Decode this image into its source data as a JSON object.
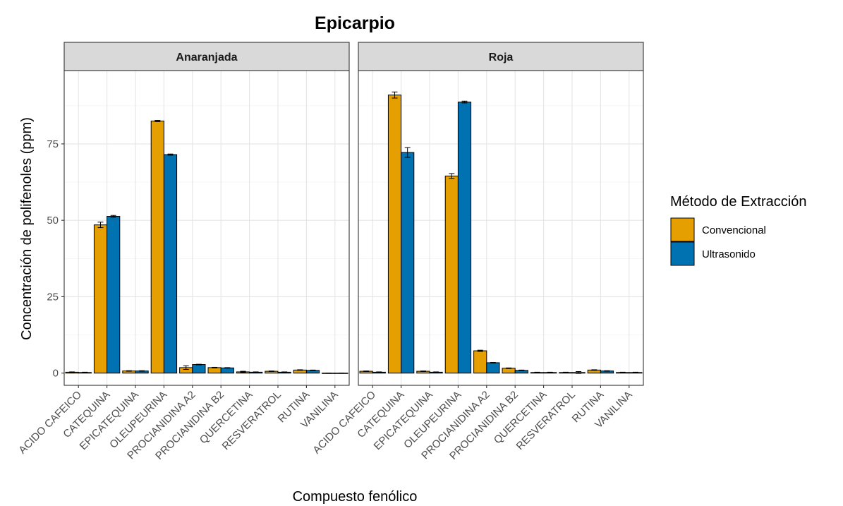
{
  "chart_data": {
    "type": "bar",
    "title": "Epicarpio",
    "xlabel": "Compuesto fenólico",
    "ylabel": "Concentración de polifenoles (ppm)",
    "ylim": [
      -4,
      99
    ],
    "yticks": [
      0,
      25,
      50,
      75
    ],
    "grid": true,
    "legend": {
      "title": "Método de Extracción",
      "position": "right"
    },
    "categories": [
      "ACIDO CAFEICO",
      "CATEQUINA",
      "EPICATEQUINA",
      "OLEUPEURINA",
      "PROCIANIDINA A2",
      "PROCIANIDINA B2",
      "QUERCETINA",
      "RESVERATROL",
      "RUTINA",
      "VANILINA"
    ],
    "colors": {
      "Convencional": "#E69F00",
      "Ultrasonido": "#0072B2"
    },
    "facets": [
      {
        "name": "Anaranjada",
        "series": [
          {
            "name": "Convencional",
            "values": [
              0.3,
              48.5,
              0.7,
              82.5,
              1.8,
              1.8,
              0.4,
              0.6,
              1.0,
              0.0
            ],
            "errors": [
              0.1,
              0.9,
              0.1,
              0.2,
              0.6,
              0.1,
              0.2,
              0.1,
              0.1,
              0.0
            ]
          },
          {
            "name": "Ultrasonido",
            "values": [
              0.2,
              51.3,
              0.7,
              71.5,
              2.8,
              1.7,
              0.3,
              0.3,
              0.9,
              0.0
            ],
            "errors": [
              0.1,
              0.3,
              0.1,
              0.2,
              0.1,
              0.1,
              0.1,
              0.1,
              0.1,
              0.0
            ]
          }
        ]
      },
      {
        "name": "Roja",
        "series": [
          {
            "name": "Convencional",
            "values": [
              0.6,
              91.0,
              0.6,
              64.5,
              7.3,
              1.6,
              0.2,
              0.2,
              1.0,
              0.2
            ],
            "errors": [
              0.1,
              1.0,
              0.1,
              0.8,
              0.2,
              0.1,
              0.1,
              0.1,
              0.1,
              0.1
            ]
          },
          {
            "name": "Ultrasonido",
            "values": [
              0.3,
              72.2,
              0.3,
              88.7,
              3.4,
              0.9,
              0.2,
              0.2,
              0.7,
              0.2
            ],
            "errors": [
              0.1,
              1.6,
              0.1,
              0.3,
              0.1,
              0.1,
              0.1,
              0.3,
              0.1,
              0.1
            ]
          }
        ]
      }
    ]
  }
}
